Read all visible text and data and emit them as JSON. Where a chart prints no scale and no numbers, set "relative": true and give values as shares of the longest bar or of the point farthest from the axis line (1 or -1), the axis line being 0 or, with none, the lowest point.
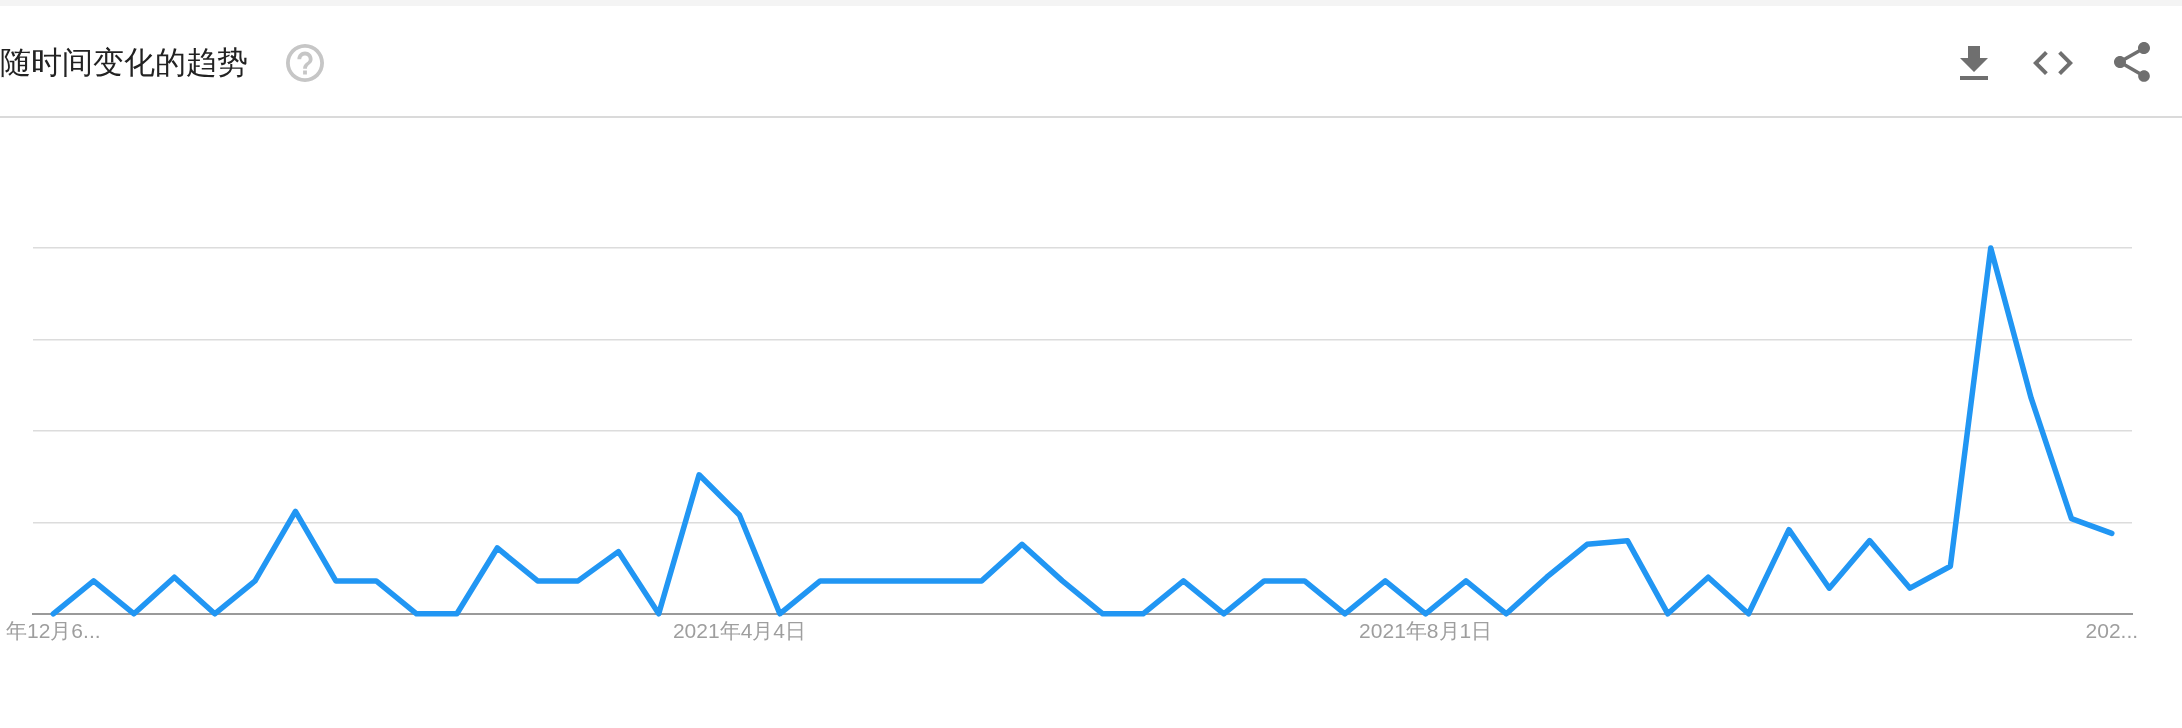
{
  "chart_data": {
    "type": "line",
    "title": "随时间变化的趋势",
    "categories": [
      "年12月6...",
      null,
      null,
      null,
      null,
      null,
      null,
      null,
      null,
      null,
      null,
      null,
      null,
      null,
      null,
      null,
      null,
      "2021年4月4日",
      null,
      null,
      null,
      null,
      null,
      null,
      null,
      null,
      null,
      null,
      null,
      null,
      null,
      null,
      null,
      null,
      "2021年8月1日",
      null,
      null,
      null,
      null,
      null,
      null,
      null,
      null,
      null,
      null,
      null,
      null,
      null,
      null,
      null,
      null,
      "202..."
    ],
    "series": [
      {
        "color": "#2196f3",
        "values": [
          0,
          0.09,
          0,
          0.1,
          0,
          0.09,
          0.28,
          0.09,
          0.09,
          0,
          0,
          0.18,
          0.09,
          0.09,
          0.17,
          0,
          0.38,
          0.27,
          0,
          0.09,
          0.09,
          0.09,
          0.09,
          0.09,
          0.19,
          0.09,
          0,
          0,
          0.09,
          0,
          0.09,
          0.09,
          0,
          0.09,
          0,
          0.09,
          0,
          0.1,
          0.19,
          0.2,
          0,
          0.1,
          0,
          0.23,
          0.07,
          0.2,
          0.07,
          0.13,
          1,
          0.59,
          0.26,
          0.22
        ]
      }
    ],
    "relative": true,
    "grid": "y",
    "marker": "none"
  }
}
